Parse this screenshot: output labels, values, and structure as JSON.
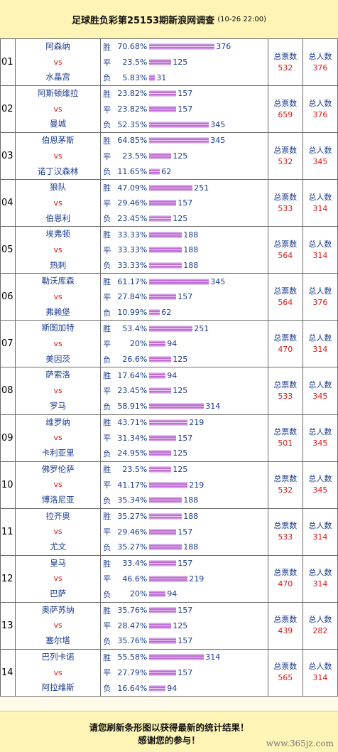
{
  "title": "足球胜负彩第25153期新浪网调查",
  "date": "(10-26 22:00)",
  "labels": {
    "win": "胜",
    "draw": "平",
    "loss": "负",
    "vs": "vs",
    "total_votes": "总票数",
    "total_people": "总人数"
  },
  "matches": [
    {
      "no": "01",
      "home": "阿森纳",
      "away": "水晶宫",
      "win": {
        "pct": "70.68%",
        "count": "376"
      },
      "draw": {
        "pct": "23.5%",
        "count": "125"
      },
      "loss": {
        "pct": "5.83%",
        "count": "31"
      },
      "total_votes": "532",
      "total_people": "376"
    },
    {
      "no": "02",
      "home": "阿斯顿维拉",
      "away": "曼城",
      "win": {
        "pct": "23.82%",
        "count": "157"
      },
      "draw": {
        "pct": "23.82%",
        "count": "157"
      },
      "loss": {
        "pct": "52.35%",
        "count": "345"
      },
      "total_votes": "659",
      "total_people": "376"
    },
    {
      "no": "03",
      "home": "伯恩茅斯",
      "away": "诺丁汉森林",
      "win": {
        "pct": "64.85%",
        "count": "345"
      },
      "draw": {
        "pct": "23.5%",
        "count": "125"
      },
      "loss": {
        "pct": "11.65%",
        "count": "62"
      },
      "total_votes": "532",
      "total_people": "345"
    },
    {
      "no": "04",
      "home": "狼队",
      "away": "伯恩利",
      "win": {
        "pct": "47.09%",
        "count": "251"
      },
      "draw": {
        "pct": "29.46%",
        "count": "157"
      },
      "loss": {
        "pct": "23.45%",
        "count": "125"
      },
      "total_votes": "533",
      "total_people": "314"
    },
    {
      "no": "05",
      "home": "埃弗顿",
      "away": "热刺",
      "win": {
        "pct": "33.33%",
        "count": "188"
      },
      "draw": {
        "pct": "33.33%",
        "count": "188"
      },
      "loss": {
        "pct": "33.33%",
        "count": "188"
      },
      "total_votes": "564",
      "total_people": "314"
    },
    {
      "no": "06",
      "home": "勒沃库森",
      "away": "弗赖堡",
      "win": {
        "pct": "61.17%",
        "count": "345"
      },
      "draw": {
        "pct": "27.84%",
        "count": "157"
      },
      "loss": {
        "pct": "10.99%",
        "count": "62"
      },
      "total_votes": "564",
      "total_people": "376"
    },
    {
      "no": "07",
      "home": "斯图加特",
      "away": "美因茨",
      "win": {
        "pct": "53.4%",
        "count": "251"
      },
      "draw": {
        "pct": "20%",
        "count": "94"
      },
      "loss": {
        "pct": "26.6%",
        "count": "125"
      },
      "total_votes": "470",
      "total_people": "314"
    },
    {
      "no": "08",
      "home": "萨索洛",
      "away": "罗马",
      "win": {
        "pct": "17.64%",
        "count": "94"
      },
      "draw": {
        "pct": "23.45%",
        "count": "125"
      },
      "loss": {
        "pct": "58.91%",
        "count": "314"
      },
      "total_votes": "533",
      "total_people": "345"
    },
    {
      "no": "09",
      "home": "维罗纳",
      "away": "卡利亚里",
      "win": {
        "pct": "43.71%",
        "count": "219"
      },
      "draw": {
        "pct": "31.34%",
        "count": "157"
      },
      "loss": {
        "pct": "24.95%",
        "count": "125"
      },
      "total_votes": "501",
      "total_people": "345"
    },
    {
      "no": "10",
      "home": "佛罗伦萨",
      "away": "博洛尼亚",
      "win": {
        "pct": "23.5%",
        "count": "125"
      },
      "draw": {
        "pct": "41.17%",
        "count": "219"
      },
      "loss": {
        "pct": "35.34%",
        "count": "188"
      },
      "total_votes": "532",
      "total_people": "345"
    },
    {
      "no": "11",
      "home": "拉齐奥",
      "away": "尤文",
      "win": {
        "pct": "35.27%",
        "count": "188"
      },
      "draw": {
        "pct": "29.46%",
        "count": "157"
      },
      "loss": {
        "pct": "35.27%",
        "count": "188"
      },
      "total_votes": "533",
      "total_people": "314"
    },
    {
      "no": "12",
      "home": "皇马",
      "away": "巴萨",
      "win": {
        "pct": "33.4%",
        "count": "157"
      },
      "draw": {
        "pct": "46.6%",
        "count": "219"
      },
      "loss": {
        "pct": "20%",
        "count": "94"
      },
      "total_votes": "470",
      "total_people": "314"
    },
    {
      "no": "13",
      "home": "奥萨苏纳",
      "away": "塞尔塔",
      "win": {
        "pct": "35.76%",
        "count": "157"
      },
      "draw": {
        "pct": "28.47%",
        "count": "125"
      },
      "loss": {
        "pct": "35.76%",
        "count": "157"
      },
      "total_votes": "439",
      "total_people": "282"
    },
    {
      "no": "14",
      "home": "巴列卡诺",
      "away": "阿拉维斯",
      "win": {
        "pct": "55.58%",
        "count": "314"
      },
      "draw": {
        "pct": "27.79%",
        "count": "157"
      },
      "loss": {
        "pct": "16.64%",
        "count": "94"
      },
      "total_votes": "565",
      "total_people": "314"
    }
  ],
  "footer": {
    "line1": "请您刷新条形图以获得最新的统计结果！",
    "line2": "感谢您的参与！",
    "watermark": "www.365jz.com"
  },
  "colors": {
    "bar": "#b14ccb",
    "team": "#1a3a8c",
    "value": "#d61a1a",
    "header_bg": "#fdf4b5"
  }
}
